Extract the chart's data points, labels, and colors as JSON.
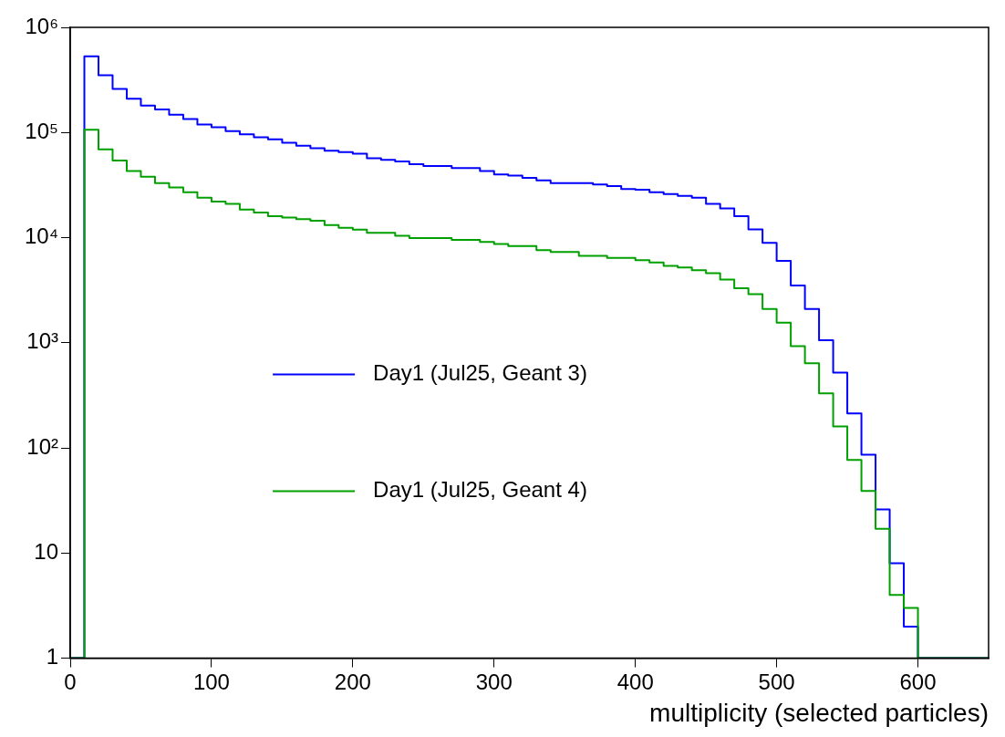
{
  "chart_data": {
    "type": "histogram",
    "xlabel": "multiplicity (selected particles)",
    "bins": [
      0,
      10,
      20,
      30,
      40,
      50,
      60,
      70,
      80,
      90,
      100,
      110,
      120,
      130,
      140,
      150,
      160,
      170,
      180,
      190,
      200,
      210,
      220,
      230,
      240,
      250,
      260,
      270,
      280,
      290,
      300,
      310,
      320,
      330,
      340,
      350,
      360,
      370,
      380,
      390,
      400,
      410,
      420,
      430,
      440,
      450,
      460,
      470,
      480,
      490,
      500,
      510,
      520,
      530,
      540,
      550,
      560,
      570,
      580,
      590,
      600,
      610,
      620,
      630,
      640,
      650
    ],
    "series": [
      {
        "name": "Day1 (Jul25, Geant 3)",
        "color": "#0000ff",
        "values": [
          null,
          530000,
          350000,
          260000,
          210000,
          180000,
          166000,
          148000,
          134000,
          119000,
          112000,
          103000,
          96000,
          90000,
          86000,
          80000,
          75000,
          71000,
          67000,
          65000,
          63000,
          57000,
          55000,
          53000,
          50000,
          48000,
          48000,
          46000,
          46000,
          43000,
          40000,
          39000,
          37000,
          35000,
          33000,
          33000,
          33000,
          32000,
          31000,
          29000,
          28500,
          27000,
          26000,
          25000,
          24000,
          21000,
          19000,
          16000,
          12000,
          8900,
          6000,
          3500,
          2100,
          1060,
          520,
          213,
          86,
          26,
          8,
          2,
          null,
          1,
          null,
          null,
          null
        ]
      },
      {
        "name": "Day1 (Jul25, Geant 4)",
        "color": "#00a000",
        "values": [
          null,
          106000,
          69000,
          54000,
          43000,
          38000,
          33000,
          30000,
          27000,
          24000,
          22000,
          21000,
          18500,
          17300,
          16000,
          15500,
          15000,
          14500,
          13200,
          12400,
          11900,
          11100,
          11100,
          10400,
          9900,
          9900,
          9900,
          9500,
          9500,
          9100,
          8700,
          8300,
          8300,
          7600,
          7300,
          7300,
          6700,
          6700,
          6400,
          6400,
          6100,
          5800,
          5400,
          5200,
          4900,
          4600,
          4000,
          3300,
          2900,
          2100,
          1550,
          930,
          640,
          330,
          160,
          77,
          39,
          17,
          4,
          3,
          null,
          null,
          null,
          null,
          null
        ]
      }
    ],
    "xlim": [
      0,
      650
    ],
    "xticks": [
      0,
      100,
      200,
      300,
      400,
      500,
      600
    ],
    "ylim": [
      1,
      1000000
    ],
    "yticks": [
      1,
      10,
      {
        "value": 100,
        "label": "10²"
      },
      {
        "value": 1000,
        "label": "10³"
      },
      {
        "value": 10000,
        "label": "10⁴"
      },
      {
        "value": 100000,
        "label": "10⁵"
      },
      {
        "value": 1000000,
        "label": "10⁶"
      }
    ],
    "log": true,
    "grid": false,
    "legend": "left"
  }
}
